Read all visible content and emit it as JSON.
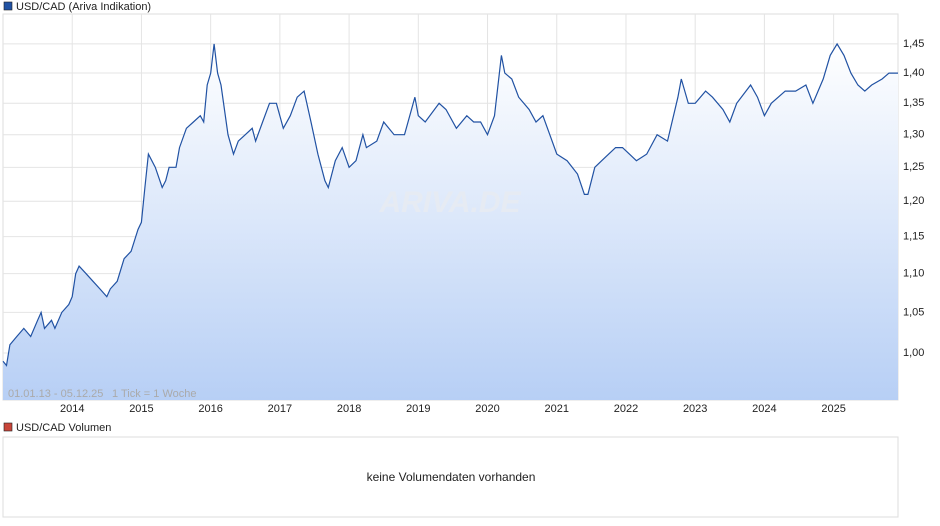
{
  "chart_data": {
    "type": "line",
    "series": [
      {
        "name": "USD/CAD (Ariva Indikation)",
        "color": "#2152a3",
        "values": [
          0.99,
          0.985,
          1.01,
          1.02,
          1.03,
          1.02,
          1.04,
          1.05,
          1.03,
          1.04,
          1.03,
          1.05,
          1.06,
          1.07,
          1.1,
          1.11,
          1.1,
          1.09,
          1.08,
          1.07,
          1.08,
          1.09,
          1.12,
          1.13,
          1.16,
          1.17,
          1.22,
          1.27,
          1.25,
          1.22,
          1.23,
          1.25,
          1.25,
          1.28,
          1.31,
          1.32,
          1.33,
          1.32,
          1.38,
          1.4,
          1.45,
          1.4,
          1.38,
          1.3,
          1.27,
          1.29,
          1.3,
          1.31,
          1.29,
          1.32,
          1.35,
          1.35,
          1.31,
          1.33,
          1.36,
          1.37,
          1.32,
          1.27,
          1.23,
          1.22,
          1.26,
          1.28,
          1.25,
          1.26,
          1.3,
          1.28,
          1.29,
          1.32,
          1.3,
          1.3,
          1.36,
          1.33,
          1.32,
          1.35,
          1.34,
          1.31,
          1.33,
          1.32,
          1.32,
          1.3,
          1.33,
          1.43,
          1.4,
          1.39,
          1.36,
          1.34,
          1.32,
          1.33,
          1.3,
          1.27,
          1.26,
          1.24,
          1.21,
          1.21,
          1.25,
          1.26,
          1.27,
          1.28,
          1.28,
          1.27,
          1.26,
          1.27,
          1.3,
          1.29,
          1.36,
          1.39,
          1.35,
          1.35,
          1.37,
          1.36,
          1.34,
          1.32,
          1.35,
          1.38,
          1.36,
          1.33,
          1.35,
          1.37,
          1.37,
          1.38,
          1.35,
          1.39,
          1.43,
          1.45,
          1.43,
          1.4,
          1.38,
          1.37,
          1.38,
          1.39,
          1.4,
          1.4
        ]
      }
    ],
    "x": [
      2013.0,
      2013.05,
      2013.1,
      2013.2,
      2013.3,
      2013.4,
      2013.5,
      2013.55,
      2013.6,
      2013.7,
      2013.75,
      2013.85,
      2013.95,
      2014.0,
      2014.05,
      2014.1,
      2014.2,
      2014.3,
      2014.4,
      2014.5,
      2014.55,
      2014.65,
      2014.75,
      2014.85,
      2014.95,
      2015.0,
      2015.05,
      2015.1,
      2015.2,
      2015.3,
      2015.35,
      2015.4,
      2015.5,
      2015.55,
      2015.65,
      2015.75,
      2015.85,
      2015.9,
      2015.95,
      2016.0,
      2016.05,
      2016.1,
      2016.15,
      2016.25,
      2016.33,
      2016.4,
      2016.5,
      2016.6,
      2016.65,
      2016.75,
      2016.85,
      2016.95,
      2017.05,
      2017.15,
      2017.25,
      2017.35,
      2017.45,
      2017.55,
      2017.65,
      2017.7,
      2017.8,
      2017.9,
      2018.0,
      2018.1,
      2018.2,
      2018.25,
      2018.4,
      2018.5,
      2018.65,
      2018.8,
      2018.95,
      2019.0,
      2019.1,
      2019.3,
      2019.4,
      2019.55,
      2019.7,
      2019.8,
      2019.9,
      2020.0,
      2020.1,
      2020.2,
      2020.25,
      2020.35,
      2020.45,
      2020.6,
      2020.7,
      2020.8,
      2020.9,
      2021.0,
      2021.15,
      2021.3,
      2021.4,
      2021.45,
      2021.55,
      2021.65,
      2021.75,
      2021.85,
      2021.95,
      2022.05,
      2022.15,
      2022.3,
      2022.45,
      2022.6,
      2022.75,
      2022.8,
      2022.9,
      2023.0,
      2023.15,
      2023.25,
      2023.4,
      2023.5,
      2023.6,
      2023.8,
      2023.9,
      2024.0,
      2024.1,
      2024.3,
      2024.45,
      2024.6,
      2024.7,
      2024.85,
      2024.95,
      2025.05,
      2025.15,
      2025.25,
      2025.35,
      2025.45,
      2025.55,
      2025.7,
      2025.8,
      2025.93
    ],
    "xlim": [
      2013.0,
      2025.93
    ],
    "xticks": [
      2014,
      2015,
      2016,
      2017,
      2018,
      2019,
      2020,
      2021,
      2022,
      2023,
      2024,
      2025
    ],
    "ylim": [
      0.945,
      1.503
    ],
    "yticks": [
      {
        "value": 1.0,
        "label": "1,00"
      },
      {
        "value": 1.05,
        "label": "1,05"
      },
      {
        "value": 1.1,
        "label": "1,10"
      },
      {
        "value": 1.15,
        "label": "1,15"
      },
      {
        "value": 1.2,
        "label": "1,20"
      },
      {
        "value": 1.25,
        "label": "1,25"
      },
      {
        "value": 1.3,
        "label": "1,30"
      },
      {
        "value": 1.35,
        "label": "1,35"
      },
      {
        "value": 1.4,
        "label": "1,40"
      },
      {
        "value": 1.45,
        "label": "1,45"
      }
    ],
    "log_scale": true,
    "grid": true,
    "range_label": "01.01.13 - 05.12.25",
    "tick_label": "1 Tick = 1 Woche",
    "watermark": "ARIVA.DE"
  },
  "volume_panel": {
    "name": "USD/CAD Volumen",
    "color": "#c8453a",
    "message": "keine Volumendaten vorhanden"
  }
}
